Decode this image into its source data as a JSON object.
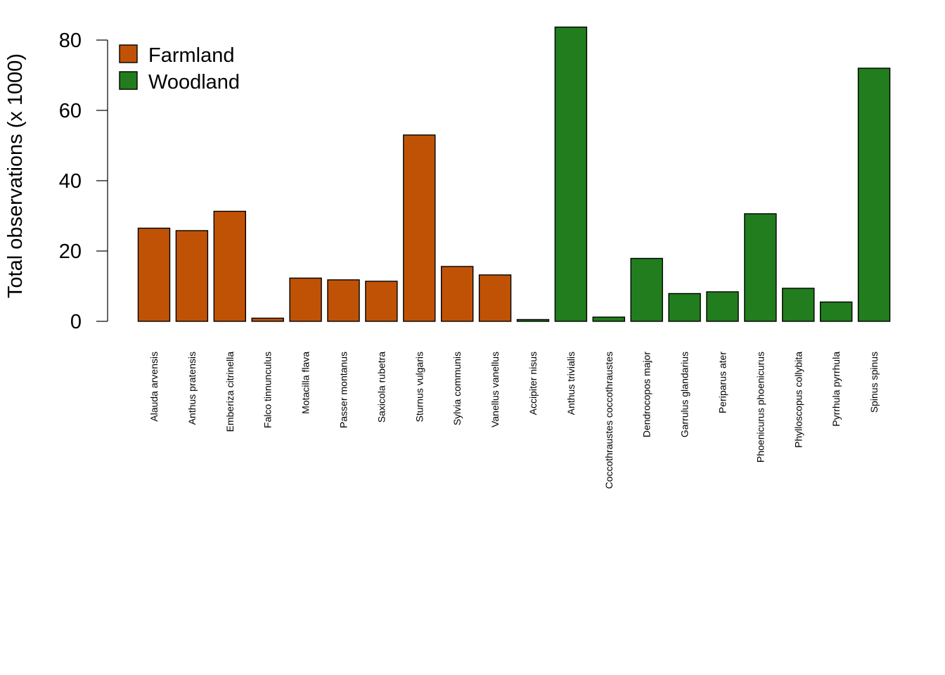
{
  "chart_data": {
    "type": "bar",
    "title": "",
    "xlabel": "",
    "ylabel": "Total observations (x 1000)",
    "ylim": [
      0,
      80
    ],
    "yticks": [
      0,
      20,
      40,
      60,
      80
    ],
    "grid": false,
    "legend_position": "top-left",
    "legend": [
      {
        "name": "Farmland",
        "color": "#C05206"
      },
      {
        "name": "Woodland",
        "color": "#217D1D"
      }
    ],
    "bars": [
      {
        "category": "Alauda arvensis",
        "value": 26.5,
        "group": "Farmland"
      },
      {
        "category": "Anthus pratensis",
        "value": 25.8,
        "group": "Farmland"
      },
      {
        "category": "Emberiza citrinella",
        "value": 31.3,
        "group": "Farmland"
      },
      {
        "category": "Falco tinnunculus",
        "value": 0.9,
        "group": "Farmland"
      },
      {
        "category": "Motacilla flava",
        "value": 12.3,
        "group": "Farmland"
      },
      {
        "category": "Passer montanus",
        "value": 11.8,
        "group": "Farmland"
      },
      {
        "category": "Saxicola rubetra",
        "value": 11.4,
        "group": "Farmland"
      },
      {
        "category": "Sturnus vulgaris",
        "value": 53.0,
        "group": "Farmland"
      },
      {
        "category": "Sylvia communis",
        "value": 15.6,
        "group": "Farmland"
      },
      {
        "category": "Vanellus vanellus",
        "value": 13.2,
        "group": "Farmland"
      },
      {
        "category": "Accipiter nisus",
        "value": 0.5,
        "group": "Woodland"
      },
      {
        "category": "Anthus trivialis",
        "value": 83.7,
        "group": "Woodland"
      },
      {
        "category": "Coccothraustes coccothraustes",
        "value": 1.2,
        "group": "Woodland"
      },
      {
        "category": "Dendrocopos major",
        "value": 17.9,
        "group": "Woodland"
      },
      {
        "category": "Garrulus glandarius",
        "value": 7.9,
        "group": "Woodland"
      },
      {
        "category": "Periparus ater",
        "value": 8.4,
        "group": "Woodland"
      },
      {
        "category": "Phoenicurus phoenicurus",
        "value": 30.6,
        "group": "Woodland"
      },
      {
        "category": "Phylloscopus collybita",
        "value": 9.4,
        "group": "Woodland"
      },
      {
        "category": "Pyrrhula pyrrhula",
        "value": 5.5,
        "group": "Woodland"
      },
      {
        "category": "Spinus spinus",
        "value": 72.0,
        "group": "Woodland"
      }
    ]
  }
}
